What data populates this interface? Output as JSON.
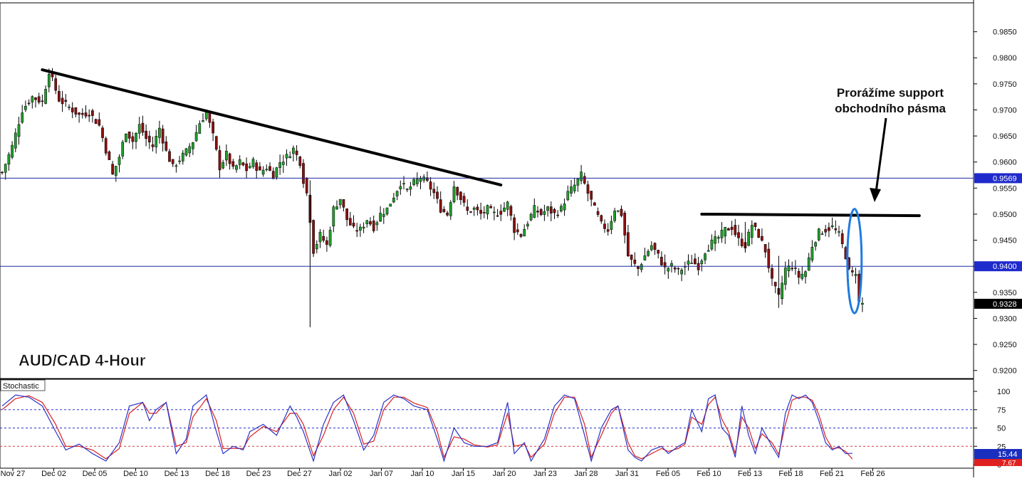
{
  "chart_data": [
    {
      "type": "candlestick",
      "title": "AUD/CAD 4-Hour",
      "y_ticks": [
        "0.9850",
        "0.9800",
        "0.9750",
        "0.9700",
        "0.9650",
        "0.9600",
        "0.9550",
        "0.9500",
        "0.9450",
        "0.9400",
        "0.9350",
        "0.9300",
        "0.9250",
        "0.9200"
      ],
      "x_ticks": [
        "Nov 27",
        "Dec 02",
        "Dec 05",
        "Dec 10",
        "Dec 13",
        "Dec 18",
        "Dec 23",
        "Dec 27",
        "Jan 02",
        "Jan 07",
        "Jan 10",
        "Jan 15",
        "Jan 20",
        "Jan 23",
        "Jan 28",
        "Jan 31",
        "Feb 05",
        "Feb 10",
        "Feb 13",
        "Feb 18",
        "Feb 21",
        "Feb 26"
      ],
      "ylim": [
        0.919,
        0.99
      ],
      "y_tick_values": [
        0.985,
        0.98,
        0.975,
        0.97,
        0.965,
        0.96,
        0.955,
        0.95,
        0.945,
        0.94,
        0.935,
        0.93,
        0.925,
        0.92
      ],
      "close_path": [
        [
          0,
          0.958
        ],
        [
          3,
          0.963
        ],
        [
          6,
          0.97
        ],
        [
          9,
          0.9725
        ],
        [
          12,
          0.9715
        ],
        [
          14,
          0.9775
        ],
        [
          17,
          0.972
        ],
        [
          20,
          0.9705
        ],
        [
          23,
          0.969
        ],
        [
          26,
          0.9695
        ],
        [
          29,
          0.967
        ],
        [
          32,
          0.96
        ],
        [
          33,
          0.9575
        ],
        [
          35,
          0.961
        ],
        [
          37,
          0.966
        ],
        [
          39,
          0.964
        ],
        [
          41,
          0.967
        ],
        [
          43,
          0.9645
        ],
        [
          45,
          0.963
        ],
        [
          47,
          0.9665
        ],
        [
          49,
          0.962
        ],
        [
          51,
          0.959
        ],
        [
          53,
          0.9605
        ],
        [
          55,
          0.962
        ],
        [
          57,
          0.964
        ],
        [
          59,
          0.9675
        ],
        [
          61,
          0.9695
        ],
        [
          63,
          0.965
        ],
        [
          65,
          0.959
        ],
        [
          67,
          0.9615
        ],
        [
          69,
          0.9585
        ],
        [
          71,
          0.96
        ],
        [
          73,
          0.9585
        ],
        [
          75,
          0.96
        ],
        [
          77,
          0.958
        ],
        [
          79,
          0.959
        ],
        [
          81,
          0.9575
        ],
        [
          83,
          0.96
        ],
        [
          85,
          0.961
        ],
        [
          87,
          0.9625
        ],
        [
          89,
          0.96
        ],
        [
          90,
          0.9565
        ],
        [
          91,
          0.954
        ],
        [
          92,
          0.949
        ],
        [
          93,
          0.943
        ],
        [
          95,
          0.946
        ],
        [
          97,
          0.944
        ],
        [
          99,
          0.951
        ],
        [
          101,
          0.953
        ],
        [
          103,
          0.949
        ],
        [
          105,
          0.947
        ],
        [
          107,
          0.947
        ],
        [
          109,
          0.949
        ],
        [
          111,
          0.9475
        ],
        [
          113,
          0.95
        ],
        [
          115,
          0.951
        ],
        [
          117,
          0.9535
        ],
        [
          119,
          0.956
        ],
        [
          121,
          0.9545
        ],
        [
          123,
          0.956
        ],
        [
          125,
          0.957
        ],
        [
          127,
          0.956
        ],
        [
          129,
          0.954
        ],
        [
          131,
          0.951
        ],
        [
          133,
          0.95
        ],
        [
          135,
          0.9555
        ],
        [
          137,
          0.953
        ],
        [
          139,
          0.9505
        ],
        [
          141,
          0.951
        ],
        [
          143,
          0.95
        ],
        [
          145,
          0.951
        ],
        [
          147,
          0.95
        ],
        [
          149,
          0.9505
        ],
        [
          151,
          0.952
        ],
        [
          153,
          0.947
        ],
        [
          155,
          0.946
        ],
        [
          157,
          0.9485
        ],
        [
          159,
          0.951
        ],
        [
          161,
          0.95
        ],
        [
          163,
          0.951
        ],
        [
          165,
          0.95
        ],
        [
          167,
          0.951
        ],
        [
          169,
          0.954
        ],
        [
          171,
          0.9555
        ],
        [
          173,
          0.9575
        ],
        [
          175,
          0.954
        ],
        [
          177,
          0.951
        ],
        [
          179,
          0.948
        ],
        [
          181,
          0.947
        ],
        [
          183,
          0.951
        ],
        [
          185,
          0.95
        ],
        [
          187,
          0.942
        ],
        [
          188,
          0.941
        ],
        [
          190,
          0.9395
        ],
        [
          192,
          0.942
        ],
        [
          194,
          0.944
        ],
        [
          196,
          0.942
        ],
        [
          198,
          0.9395
        ],
        [
          200,
          0.94
        ],
        [
          202,
          0.939
        ],
        [
          204,
          0.94
        ],
        [
          206,
          0.941
        ],
        [
          208,
          0.94
        ],
        [
          210,
          0.943
        ],
        [
          212,
          0.9445
        ],
        [
          214,
          0.9455
        ],
        [
          216,
          0.947
        ],
        [
          218,
          0.9475
        ],
        [
          220,
          0.945
        ],
        [
          222,
          0.944
        ],
        [
          224,
          0.948
        ],
        [
          226,
          0.946
        ],
        [
          228,
          0.943
        ],
        [
          230,
          0.937
        ],
        [
          232,
          0.934
        ],
        [
          234,
          0.9395
        ],
        [
          236,
          0.94
        ],
        [
          238,
          0.938
        ],
        [
          240,
          0.939
        ],
        [
          242,
          0.944
        ],
        [
          244,
          0.9465
        ],
        [
          246,
          0.947
        ],
        [
          248,
          0.9475
        ],
        [
          250,
          0.946
        ],
        [
          252,
          0.942
        ],
        [
          253,
          0.939
        ],
        [
          254,
          0.9385
        ],
        [
          255,
          0.939
        ],
        [
          256,
          0.933
        ],
        [
          257,
          0.9328
        ]
      ],
      "candle_count": 258,
      "spikes": [
        {
          "index": 92,
          "low": 0.9283,
          "high": 0.9565
        },
        {
          "index": 232,
          "low": 0.932,
          "high": 0.942
        },
        {
          "index": 222,
          "low": 0.943,
          "high": 0.9485
        }
      ],
      "hlines": [
        {
          "value": 0.9569,
          "label": "0.9569",
          "color": "#1f2a9c"
        },
        {
          "value": 0.94,
          "label": "0.9400",
          "color": "#1f2a9c"
        }
      ],
      "current_price": {
        "value": 0.9328,
        "label": "0.9328"
      },
      "trendline": {
        "from": {
          "index": 12,
          "value": 0.9777
        },
        "to": {
          "index": 149,
          "value": 0.9556
        }
      },
      "support_line": {
        "from": {
          "index": 209,
          "value": 0.95
        },
        "to": {
          "index": 274,
          "value": 0.9497
        }
      },
      "annotation": {
        "lines": [
          "Prorážíme support",
          "obchodního pásma"
        ]
      },
      "highlight": {
        "index": 254,
        "from": 0.931,
        "to": 0.951
      }
    },
    {
      "type": "line",
      "title": "Stochastic",
      "ylim": [
        0,
        100
      ],
      "y_ticks": [
        "100",
        "75",
        "50",
        "25",
        "0"
      ],
      "y_tick_values": [
        100,
        75,
        50,
        25,
        0
      ],
      "levels": [
        75,
        50,
        25
      ],
      "k_path": [
        [
          0,
          80
        ],
        [
          4,
          95
        ],
        [
          8,
          92
        ],
        [
          12,
          80
        ],
        [
          16,
          45
        ],
        [
          19,
          20
        ],
        [
          23,
          28
        ],
        [
          27,
          15
        ],
        [
          31,
          5
        ],
        [
          35,
          30
        ],
        [
          38,
          80
        ],
        [
          42,
          85
        ],
        [
          44,
          60
        ],
        [
          46,
          75
        ],
        [
          49,
          85
        ],
        [
          52,
          15
        ],
        [
          55,
          35
        ],
        [
          57,
          80
        ],
        [
          61,
          95
        ],
        [
          64,
          45
        ],
        [
          66,
          15
        ],
        [
          69,
          25
        ],
        [
          72,
          20
        ],
        [
          74,
          45
        ],
        [
          78,
          55
        ],
        [
          82,
          40
        ],
        [
          86,
          80
        ],
        [
          88,
          65
        ],
        [
          90,
          45
        ],
        [
          93,
          5
        ],
        [
          96,
          55
        ],
        [
          99,
          85
        ],
        [
          102,
          95
        ],
        [
          105,
          60
        ],
        [
          108,
          20
        ],
        [
          111,
          40
        ],
        [
          114,
          85
        ],
        [
          117,
          95
        ],
        [
          120,
          90
        ],
        [
          123,
          80
        ],
        [
          127,
          75
        ],
        [
          130,
          35
        ],
        [
          132,
          5
        ],
        [
          135,
          50
        ],
        [
          138,
          30
        ],
        [
          141,
          25
        ],
        [
          145,
          25
        ],
        [
          148,
          30
        ],
        [
          151,
          85
        ],
        [
          153,
          15
        ],
        [
          156,
          30
        ],
        [
          158,
          5
        ],
        [
          162,
          35
        ],
        [
          165,
          80
        ],
        [
          168,
          95
        ],
        [
          171,
          90
        ],
        [
          174,
          40
        ],
        [
          176,
          5
        ],
        [
          179,
          50
        ],
        [
          182,
          75
        ],
        [
          184,
          80
        ],
        [
          187,
          20
        ],
        [
          189,
          10
        ],
        [
          191,
          5
        ],
        [
          194,
          20
        ],
        [
          197,
          25
        ],
        [
          199,
          15
        ],
        [
          202,
          25
        ],
        [
          204,
          30
        ],
        [
          206,
          75
        ],
        [
          209,
          45
        ],
        [
          211,
          90
        ],
        [
          213,
          95
        ],
        [
          215,
          50
        ],
        [
          217,
          40
        ],
        [
          219,
          10
        ],
        [
          221,
          80
        ],
        [
          223,
          40
        ],
        [
          225,
          15
        ],
        [
          227,
          50
        ],
        [
          230,
          25
        ],
        [
          232,
          10
        ],
        [
          234,
          70
        ],
        [
          236,
          95
        ],
        [
          238,
          90
        ],
        [
          240,
          95
        ],
        [
          242,
          85
        ],
        [
          244,
          60
        ],
        [
          246,
          30
        ],
        [
          248,
          20
        ],
        [
          250,
          25
        ],
        [
          252,
          15
        ],
        [
          254,
          15.44
        ]
      ],
      "d_path": [
        [
          0,
          75
        ],
        [
          4,
          90
        ],
        [
          8,
          94
        ],
        [
          12,
          85
        ],
        [
          16,
          55
        ],
        [
          19,
          25
        ],
        [
          23,
          25
        ],
        [
          27,
          20
        ],
        [
          31,
          8
        ],
        [
          35,
          22
        ],
        [
          38,
          70
        ],
        [
          42,
          85
        ],
        [
          44,
          70
        ],
        [
          46,
          70
        ],
        [
          49,
          85
        ],
        [
          52,
          25
        ],
        [
          55,
          30
        ],
        [
          57,
          65
        ],
        [
          61,
          90
        ],
        [
          64,
          60
        ],
        [
          66,
          22
        ],
        [
          69,
          22
        ],
        [
          72,
          22
        ],
        [
          74,
          38
        ],
        [
          78,
          52
        ],
        [
          82,
          45
        ],
        [
          86,
          70
        ],
        [
          88,
          70
        ],
        [
          90,
          55
        ],
        [
          93,
          12
        ],
        [
          96,
          40
        ],
        [
          99,
          75
        ],
        [
          102,
          92
        ],
        [
          105,
          70
        ],
        [
          108,
          28
        ],
        [
          111,
          32
        ],
        [
          114,
          75
        ],
        [
          117,
          92
        ],
        [
          120,
          92
        ],
        [
          123,
          84
        ],
        [
          127,
          78
        ],
        [
          130,
          45
        ],
        [
          132,
          10
        ],
        [
          135,
          38
        ],
        [
          138,
          35
        ],
        [
          141,
          27
        ],
        [
          145,
          24
        ],
        [
          148,
          27
        ],
        [
          151,
          70
        ],
        [
          153,
          25
        ],
        [
          156,
          28
        ],
        [
          158,
          10
        ],
        [
          162,
          28
        ],
        [
          165,
          70
        ],
        [
          168,
          92
        ],
        [
          171,
          92
        ],
        [
          174,
          55
        ],
        [
          176,
          10
        ],
        [
          179,
          40
        ],
        [
          182,
          70
        ],
        [
          184,
          80
        ],
        [
          187,
          30
        ],
        [
          189,
          12
        ],
        [
          191,
          8
        ],
        [
          194,
          15
        ],
        [
          197,
          22
        ],
        [
          199,
          18
        ],
        [
          202,
          22
        ],
        [
          204,
          28
        ],
        [
          206,
          65
        ],
        [
          209,
          55
        ],
        [
          211,
          82
        ],
        [
          213,
          92
        ],
        [
          215,
          62
        ],
        [
          217,
          45
        ],
        [
          219,
          15
        ],
        [
          221,
          65
        ],
        [
          223,
          50
        ],
        [
          225,
          22
        ],
        [
          227,
          42
        ],
        [
          230,
          30
        ],
        [
          232,
          14
        ],
        [
          234,
          55
        ],
        [
          236,
          88
        ],
        [
          238,
          92
        ],
        [
          240,
          92
        ],
        [
          242,
          88
        ],
        [
          244,
          68
        ],
        [
          246,
          38
        ],
        [
          248,
          22
        ],
        [
          250,
          23
        ],
        [
          252,
          18
        ],
        [
          254,
          7.67
        ]
      ],
      "readouts": [
        {
          "label": "15.44",
          "color": "#1a2fc0"
        },
        {
          "label": "7.67",
          "color": "#e02020"
        }
      ]
    }
  ],
  "colors": {
    "bull": "#1fa02a",
    "bear": "#8a1010",
    "k": "#2a34c8",
    "d": "#d82020",
    "level": "#cc3b3b",
    "grid": "#dcdcdc"
  }
}
